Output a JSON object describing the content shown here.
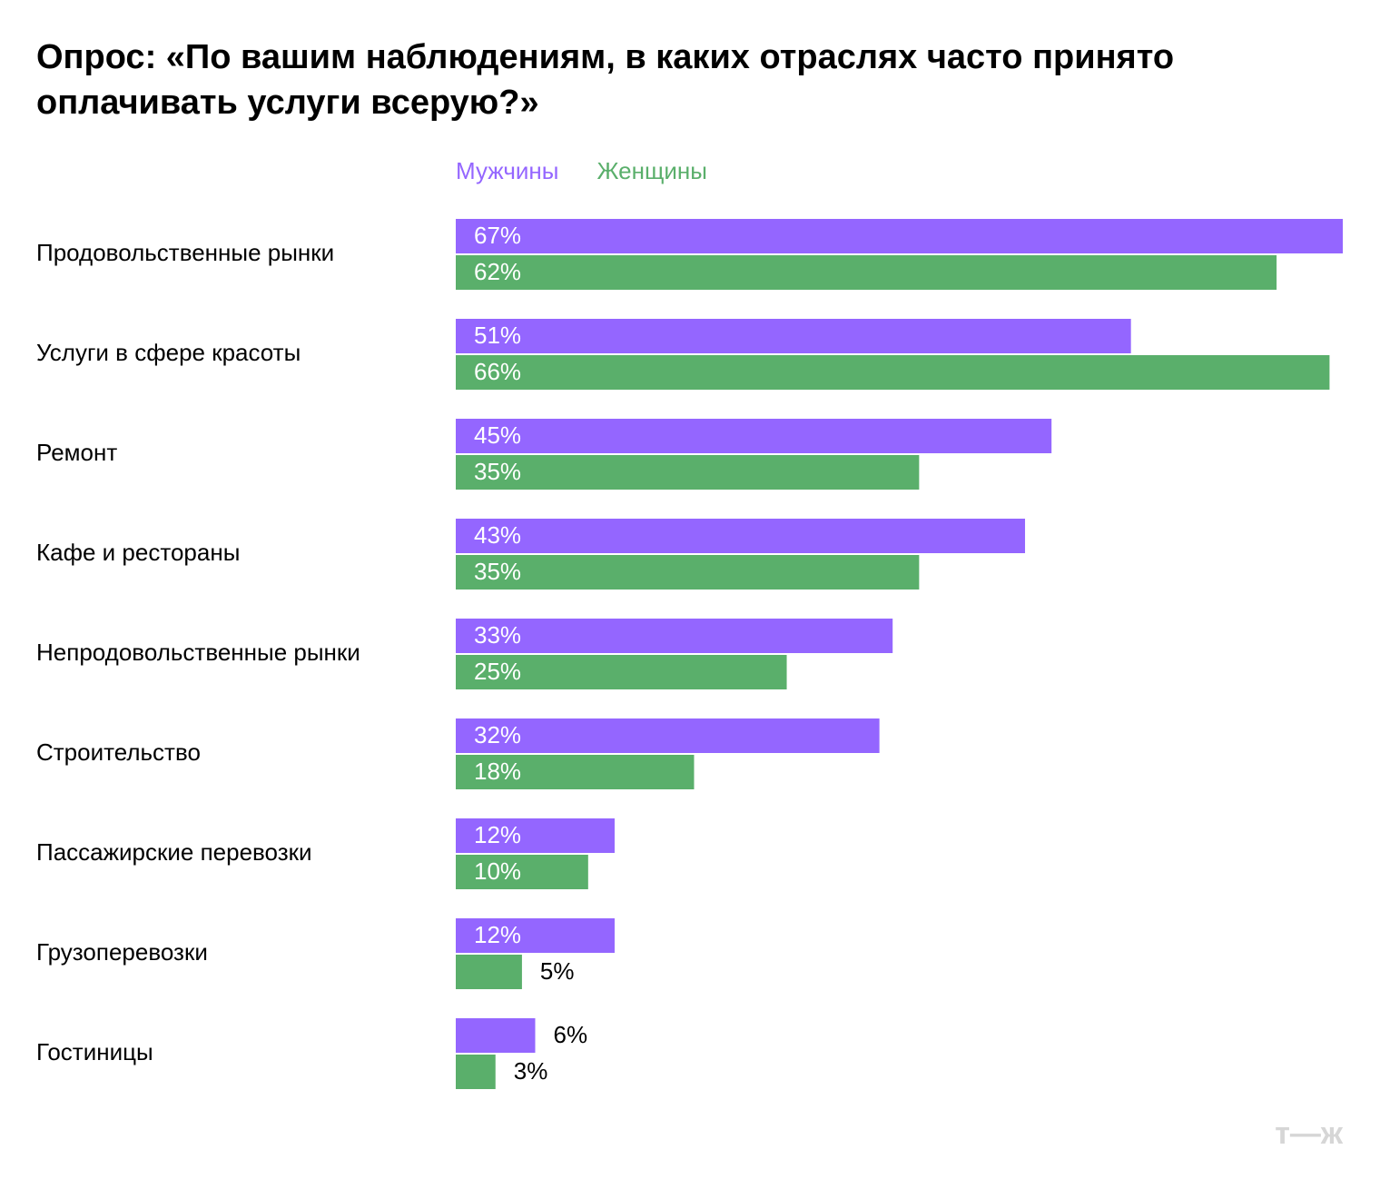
{
  "chart_data": {
    "type": "grouped-hbar",
    "title": "Опрос: «По вашим наблюдениям, в каких отраслях часто принято оплачивать услуги всерую?»",
    "categories": [
      "Продовольственные рынки",
      "Услуги в сфере красоты",
      "Ремонт",
      "Кафе и рестораны",
      "Непродовольственные рынки",
      "Строительство",
      "Пассажирские перевозки",
      "Грузоперевозки",
      "Гостиницы"
    ],
    "series": [
      {
        "name": "Мужчины",
        "color": "#9466ff",
        "values": [
          67,
          51,
          45,
          43,
          33,
          32,
          12,
          12,
          6
        ],
        "value_labels": [
          "67%",
          "51%",
          "45%",
          "43%",
          "33%",
          "32%",
          "12%",
          "12%",
          "6%"
        ]
      },
      {
        "name": "Женщины",
        "color": "#5aaf6b",
        "values": [
          62,
          66,
          35,
          35,
          25,
          18,
          10,
          5,
          3
        ],
        "value_labels": [
          "62%",
          "66%",
          "35%",
          "35%",
          "25%",
          "18%",
          "10%",
          "5%",
          "3%"
        ]
      }
    ],
    "logo": "т—ж"
  }
}
